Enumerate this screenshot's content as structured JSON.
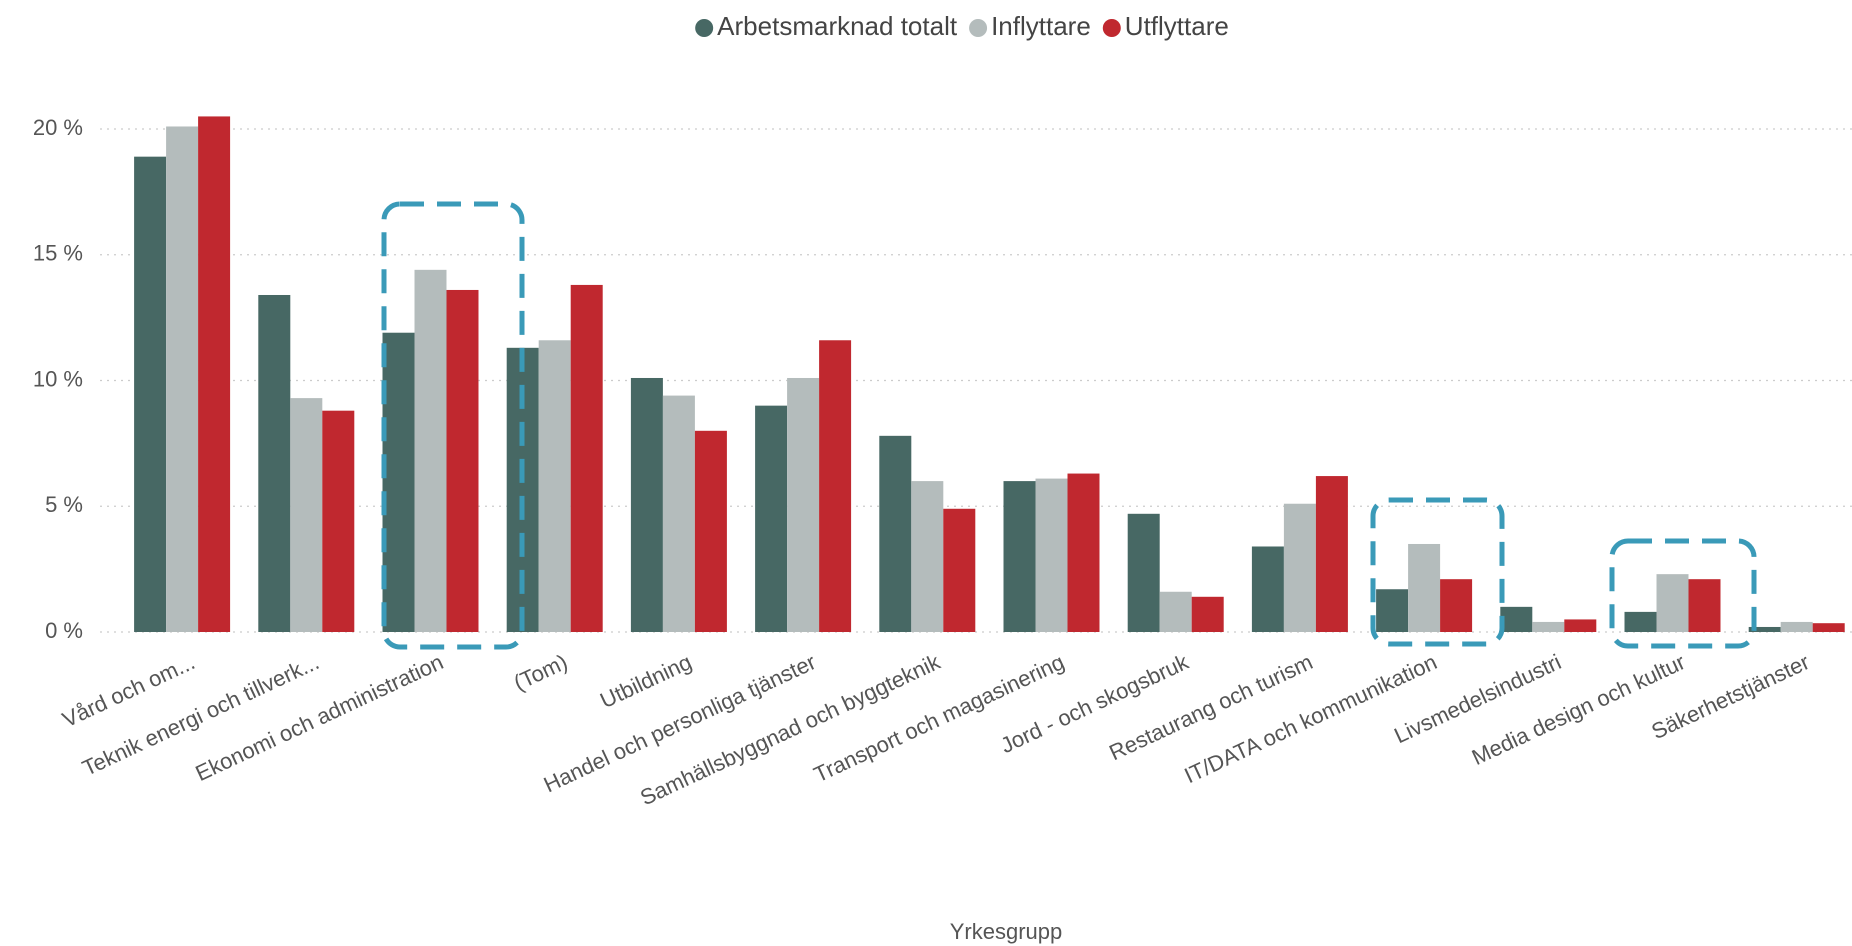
{
  "chart_data": {
    "type": "bar",
    "xlabel": "Yrkesgrupp",
    "categories": [
      "Vård och om...",
      "Teknik energi och tillverk...",
      "Ekonomi och administration",
      "(Tom)",
      "Utbildning",
      "Handel och personliga tjänster",
      "Samhällsbyggnad och byggteknik",
      "Transport och magasinering",
      "Jord - och skogsbruk",
      "Restaurang och turism",
      "IT/DATA och kommunikation",
      "Livsmedelsindustri",
      "Media design och kultur",
      "Säkerhetstjänster"
    ],
    "series": [
      {
        "name": "Arbetsmarknad totalt",
        "color": "#476864",
        "values": [
          18.9,
          13.4,
          11.9,
          11.3,
          10.1,
          9.0,
          7.8,
          6.0,
          4.7,
          3.4,
          1.7,
          1.0,
          0.8,
          0.2
        ]
      },
      {
        "name": "Inflyttare",
        "color": "#b4bcbc",
        "values": [
          20.1,
          9.3,
          14.4,
          11.6,
          9.4,
          10.1,
          6.0,
          6.1,
          1.6,
          5.1,
          3.5,
          0.4,
          2.3,
          0.4
        ]
      },
      {
        "name": "Utflyttare",
        "color": "#c0282f",
        "values": [
          20.5,
          8.8,
          13.6,
          13.8,
          8.0,
          11.6,
          4.9,
          6.3,
          1.4,
          6.2,
          2.1,
          0.5,
          2.1,
          0.35
        ]
      }
    ],
    "ylim": [
      0,
      20
    ],
    "yticks": [
      {
        "value": 0,
        "label": "0 %"
      },
      {
        "value": 5,
        "label": "5 %"
      },
      {
        "value": 10,
        "label": "10 %"
      },
      {
        "value": 15,
        "label": "15 %"
      },
      {
        "value": 20,
        "label": "20 %"
      }
    ],
    "grid": true,
    "legend": "top"
  }
}
